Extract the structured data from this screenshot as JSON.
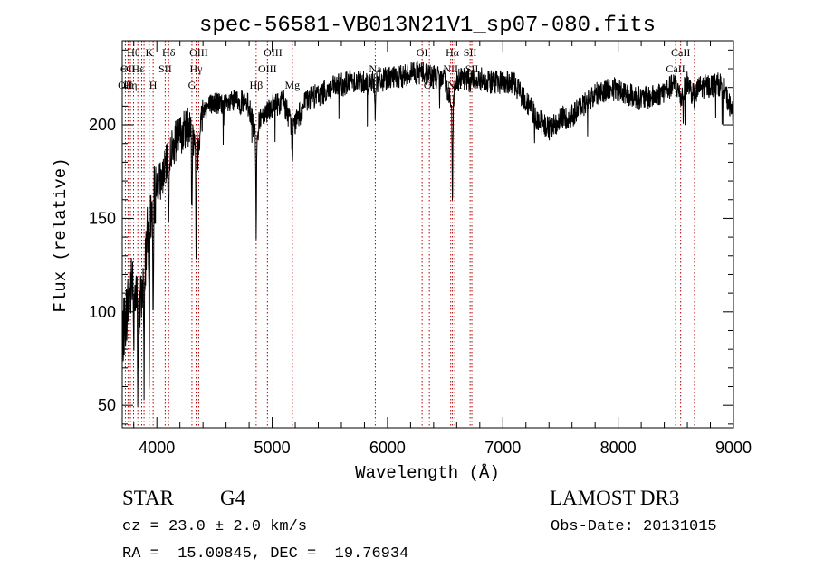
{
  "chart_data": {
    "type": "line",
    "title": "spec-56581-VB013N21V1_sp07-080.fits",
    "xlabel": "Wavelength (Å)",
    "ylabel": "Flux (relative)",
    "xlim": [
      3700,
      9000
    ],
    "ylim": [
      38,
      245
    ],
    "x_ticks": [
      4000,
      5000,
      6000,
      7000,
      8000,
      9000
    ],
    "y_ticks": [
      50,
      100,
      150,
      200
    ],
    "grid": false,
    "series": [
      {
        "name": "flux",
        "color": "#000000",
        "anchors_x": [
          3700,
          3750,
          3800,
          3850,
          3900,
          3950,
          4000,
          4050,
          4100,
          4150,
          4200,
          4300,
          4340,
          4400,
          4500,
          4600,
          4700,
          4800,
          4861,
          4900,
          5000,
          5100,
          5175,
          5300,
          5500,
          5700,
          5900,
          6000,
          6100,
          6200,
          6300,
          6400,
          6500,
          6563,
          6600,
          6700,
          6800,
          6900,
          7000,
          7100,
          7200,
          7300,
          7400,
          7500,
          7600,
          7700,
          7800,
          7900,
          8000,
          8100,
          8200,
          8300,
          8400,
          8500,
          8542,
          8600,
          8662,
          8700,
          8800,
          8900,
          9000
        ],
        "anchors_y": [
          85,
          105,
          120,
          100,
          130,
          155,
          168,
          172,
          182,
          190,
          195,
          200,
          183,
          208,
          212,
          210,
          213,
          210,
          192,
          205,
          210,
          213,
          198,
          213,
          219,
          224,
          222,
          225,
          225,
          228,
          228,
          226,
          223,
          210,
          224,
          224,
          225,
          223,
          223,
          222,
          213,
          203,
          198,
          203,
          205,
          211,
          216,
          219,
          219,
          216,
          214,
          215,
          218,
          222,
          214,
          223,
          214,
          220,
          221,
          222,
          205
        ],
        "noise": 5
      }
    ],
    "lines": [
      {
        "x": 3727,
        "label": "OII",
        "row": 2
      },
      {
        "x": 3750,
        "label": "OII",
        "row": 1
      },
      {
        "x": 3771,
        "label": "Hη",
        "row": 2
      },
      {
        "x": 3798,
        "label": "Hθ",
        "row": 0
      },
      {
        "x": 3835,
        "label": "Hε",
        "row": 1
      },
      {
        "x": 3869,
        "label": "",
        "row": 1
      },
      {
        "x": 3889,
        "label": "",
        "row": 1
      },
      {
        "x": 3934,
        "label": "K",
        "row": 0
      },
      {
        "x": 3968,
        "label": "H",
        "row": 2
      },
      {
        "x": 4072,
        "label": "SII",
        "row": 1
      },
      {
        "x": 4102,
        "label": "Hδ",
        "row": 0
      },
      {
        "x": 4304,
        "label": "G",
        "row": 2
      },
      {
        "x": 4340,
        "label": "Hγ",
        "row": 1
      },
      {
        "x": 4363,
        "label": "OIII",
        "row": 0
      },
      {
        "x": 4861,
        "label": "Hβ",
        "row": 2
      },
      {
        "x": 4959,
        "label": "OIII",
        "row": 1
      },
      {
        "x": 5007,
        "label": "OIII",
        "row": 0
      },
      {
        "x": 5175,
        "label": "Mg",
        "row": 2
      },
      {
        "x": 5894,
        "label": "Na",
        "row": 1
      },
      {
        "x": 6300,
        "label": "OI",
        "row": 0
      },
      {
        "x": 6363,
        "label": "OI",
        "row": 2
      },
      {
        "x": 6548,
        "label": "NII",
        "row": 1
      },
      {
        "x": 6563,
        "label": "Hα",
        "row": 0
      },
      {
        "x": 6583,
        "label": "NII",
        "row": 2
      },
      {
        "x": 6716,
        "label": "SII",
        "row": 0
      },
      {
        "x": 6731,
        "label": "SII",
        "row": 1
      },
      {
        "x": 8498,
        "label": "CaII",
        "row": 1
      },
      {
        "x": 8542,
        "label": "CaII",
        "row": 0
      },
      {
        "x": 8662,
        "label": "CaII",
        "row": 2
      }
    ],
    "absorption_dips": [
      {
        "x": 3800,
        "depth": 30
      },
      {
        "x": 3835,
        "depth": 60
      },
      {
        "x": 3889,
        "depth": 70
      },
      {
        "x": 3934,
        "depth": 85
      },
      {
        "x": 3968,
        "depth": 80
      },
      {
        "x": 4102,
        "depth": 40
      },
      {
        "x": 4304,
        "depth": 45
      },
      {
        "x": 4340,
        "depth": 55
      },
      {
        "x": 4861,
        "depth": 55
      },
      {
        "x": 5175,
        "depth": 25
      },
      {
        "x": 5894,
        "depth": 15
      },
      {
        "x": 6563,
        "depth": 55
      }
    ]
  },
  "info": {
    "object_class": "STAR",
    "subclass": "G4",
    "survey": "LAMOST DR3",
    "redshift": "cz = 23.0 ± 2.0 km/s",
    "obs_date": "Obs-Date: 20131015",
    "coords": "RA =  15.00845, DEC =  19.76934"
  }
}
